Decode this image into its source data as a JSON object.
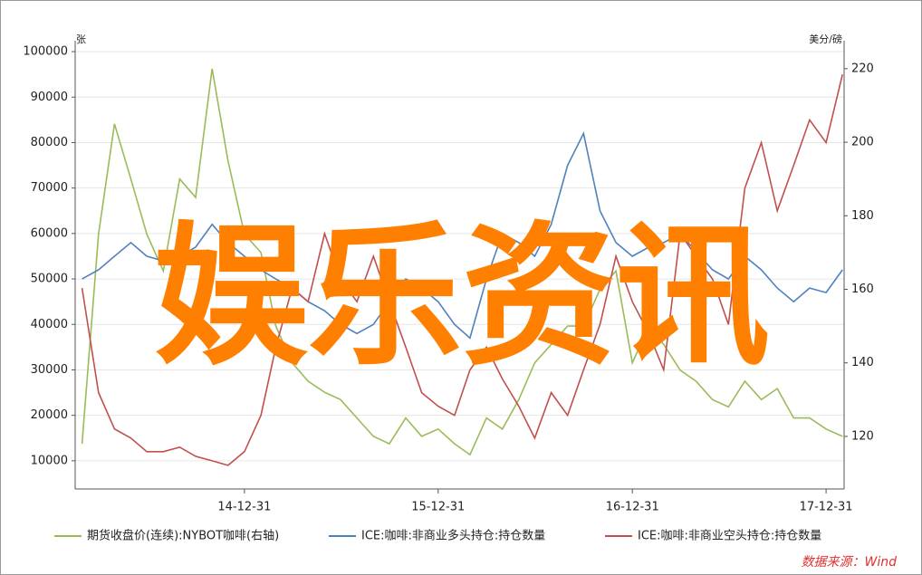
{
  "chart_data": {
    "type": "line",
    "left_unit": "张",
    "right_unit": "美分/磅",
    "x": [
      "14-02-28",
      "14-03-31",
      "14-04-30",
      "14-05-31",
      "14-06-30",
      "14-07-31",
      "14-08-31",
      "14-09-30",
      "14-10-31",
      "14-11-30",
      "14-12-31",
      "15-01-31",
      "15-02-28",
      "15-03-31",
      "15-04-30",
      "15-05-31",
      "15-06-30",
      "15-07-31",
      "15-08-31",
      "15-09-30",
      "15-10-31",
      "15-11-30",
      "15-12-31",
      "16-01-31",
      "16-02-29",
      "16-03-31",
      "16-04-30",
      "16-05-31",
      "16-06-30",
      "16-07-31",
      "16-08-31",
      "16-09-30",
      "16-10-31",
      "16-11-30",
      "16-12-31",
      "17-01-31",
      "17-02-28",
      "17-03-31",
      "17-04-30",
      "17-05-31",
      "17-06-30",
      "17-07-31",
      "17-08-31",
      "17-09-30",
      "17-10-31",
      "17-11-30",
      "17-12-31",
      "18-01-31"
    ],
    "xlim": [
      "14-02-15",
      "18-02-03"
    ],
    "xticks": [
      "14-12-31",
      "15-12-31",
      "16-12-31",
      "17-12-31"
    ],
    "ylim": [
      3800,
      102400
    ],
    "yticks": [
      10000,
      20000,
      30000,
      40000,
      50000,
      60000,
      70000,
      80000,
      90000,
      100000
    ],
    "y2lim": [
      105.7,
      227.6
    ],
    "y2ticks": [
      120,
      140,
      160,
      180,
      200,
      220
    ],
    "grid": true,
    "series": [
      {
        "name": "期货收盘价(连续):NYBOT咖啡(右轴)",
        "color": "#9bbb59",
        "axis": "y2",
        "values": [
          118,
          175,
          205,
          190,
          175,
          165,
          190,
          185,
          220,
          195,
          175,
          170,
          150,
          140,
          135,
          132,
          130,
          125,
          120,
          118,
          125,
          120,
          122,
          118,
          115,
          125,
          122,
          130,
          140,
          145,
          150,
          150,
          160,
          165,
          140,
          150,
          145,
          138,
          135,
          130,
          128,
          135,
          130,
          133,
          125,
          125,
          122,
          120
        ]
      },
      {
        "name": "ICE:咖啡:非商业多头持仓:持仓数量",
        "color": "#4f81bd",
        "values": [
          50000,
          52000,
          55000,
          58000,
          55000,
          54000,
          55000,
          57000,
          62000,
          58000,
          55000,
          52000,
          50000,
          48000,
          45000,
          43000,
          40000,
          38000,
          40000,
          45000,
          50000,
          48000,
          45000,
          40000,
          37000,
          50000,
          60000,
          58000,
          55000,
          62000,
          75000,
          82000,
          65000,
          58000,
          55000,
          57000,
          58000,
          60000,
          56000,
          52000,
          50000,
          55000,
          52000,
          48000,
          45000,
          48000,
          47000,
          52000
        ]
      },
      {
        "name": "ICE:咖啡:非商业空头持仓:持仓数量",
        "color": "#c0504d",
        "values": [
          48000,
          25000,
          17000,
          15000,
          12000,
          12000,
          13000,
          11000,
          10000,
          9000,
          12000,
          20000,
          35000,
          48000,
          45000,
          60000,
          50000,
          45000,
          55000,
          45000,
          35000,
          25000,
          22000,
          20000,
          30000,
          35000,
          28000,
          22000,
          15000,
          25000,
          20000,
          30000,
          40000,
          55000,
          45000,
          38000,
          30000,
          60000,
          55000,
          50000,
          40000,
          70000,
          80000,
          65000,
          75000,
          85000,
          80000,
          95000
        ]
      }
    ],
    "source": "数据来源：Wind"
  },
  "watermark": "娱乐资讯"
}
